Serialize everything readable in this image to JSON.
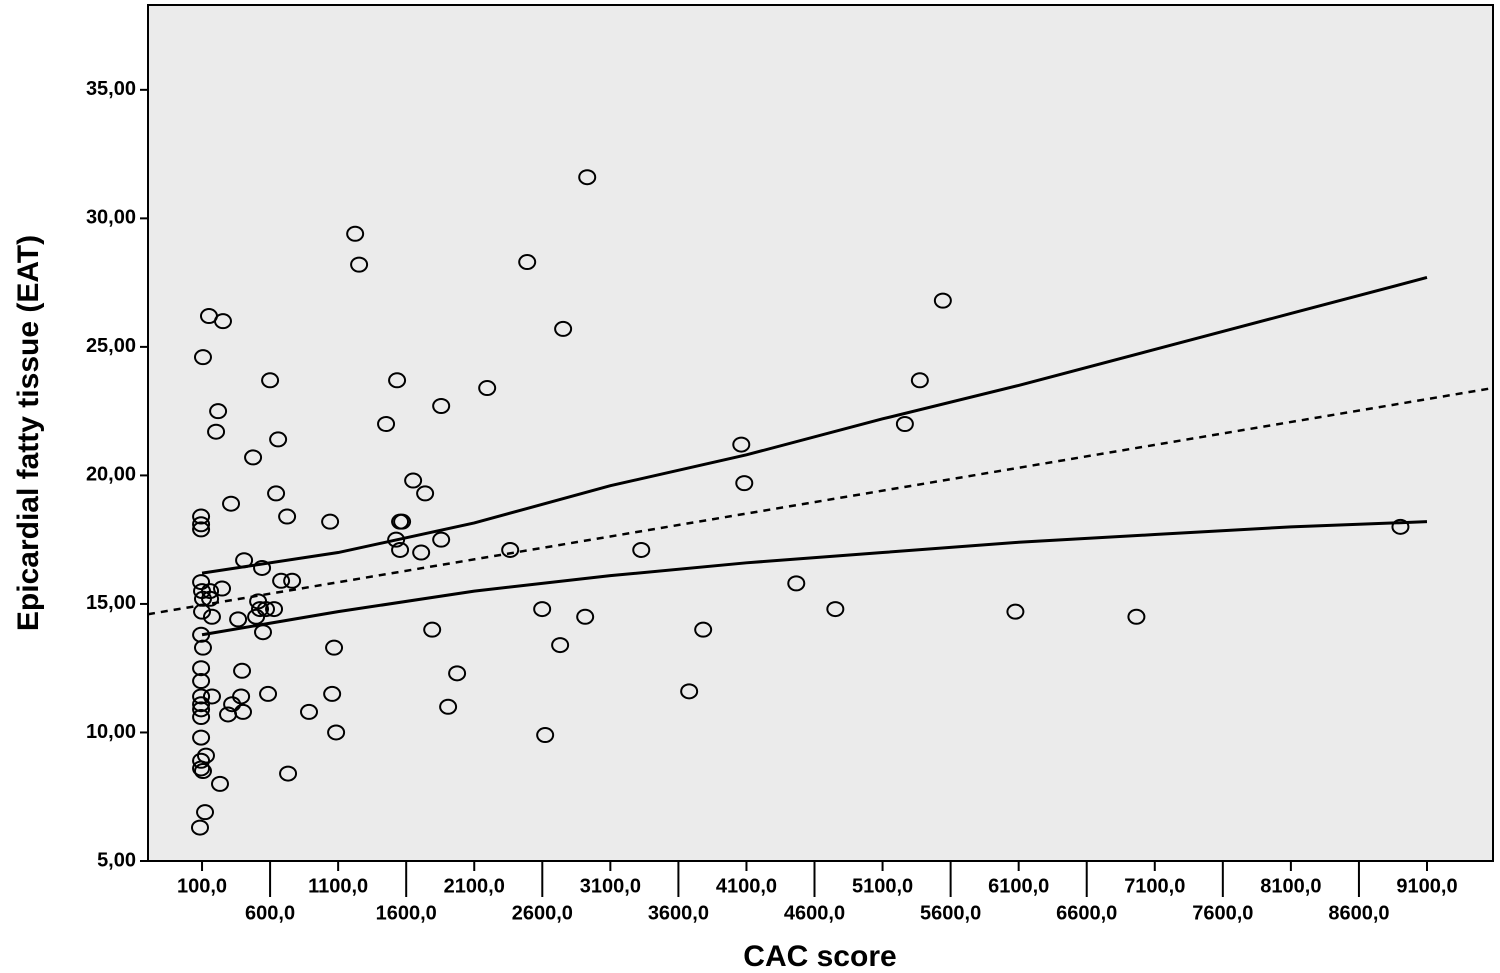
{
  "chart_data": {
    "type": "scatter",
    "x_label": "CAC score",
    "y_label": "Epicardial fatty tissue (EAT)",
    "xlim": [
      -297,
      9585
    ],
    "ylim": [
      5,
      38.3
    ],
    "xticks": [
      {
        "value": 100,
        "label": "100,0"
      },
      {
        "value": 600,
        "label": "600,0"
      },
      {
        "value": 1100,
        "label": "1100,0"
      },
      {
        "value": 1600,
        "label": "1600,0"
      },
      {
        "value": 2100,
        "label": "2100,0"
      },
      {
        "value": 2600,
        "label": "2600,0"
      },
      {
        "value": 3100,
        "label": "3100,0"
      },
      {
        "value": 3600,
        "label": "3600,0"
      },
      {
        "value": 4100,
        "label": "4100,0"
      },
      {
        "value": 4600,
        "label": "4600,0"
      },
      {
        "value": 5100,
        "label": "5100,0"
      },
      {
        "value": 5600,
        "label": "5600,0"
      },
      {
        "value": 6100,
        "label": "6100,0"
      },
      {
        "value": 6600,
        "label": "6600,0"
      },
      {
        "value": 7100,
        "label": "7100,0"
      },
      {
        "value": 7600,
        "label": "7600,0"
      },
      {
        "value": 8100,
        "label": "8100,0"
      },
      {
        "value": 8600,
        "label": "8600,0"
      },
      {
        "value": 9100,
        "label": "9100,0"
      }
    ],
    "yticks": [
      {
        "value": 5,
        "label": "5,00"
      },
      {
        "value": 10,
        "label": "10,00"
      },
      {
        "value": 15,
        "label": "15,00"
      },
      {
        "value": 20,
        "label": "20,00"
      },
      {
        "value": 25,
        "label": "25,00"
      },
      {
        "value": 30,
        "label": "30,00"
      },
      {
        "value": 35,
        "label": "35,00"
      }
    ],
    "marker_color": "#000000",
    "background": "#ebebeb",
    "x": [
      93,
      93,
      93,
      93,
      100,
      107,
      159,
      100,
      173,
      93,
      107,
      93,
      93,
      93,
      93,
      93,
      93,
      173,
      93,
      129,
      93,
      93,
      107,
      122,
      85,
      107,
      151,
      254,
      218,
      203,
      313,
      247,
      159,
      232,
      291,
      321,
      365,
      394,
      409,
      387,
      401,
      475,
      497,
      512,
      541,
      526,
      548,
      570,
      600,
      585,
      644,
      659,
      629,
      681,
      725,
      762,
      732,
      886,
      1041,
      1070,
      1056,
      1085,
      1225,
      1254,
      1452,
      1533,
      1555,
      1526,
      1555,
      1570,
      1651,
      1710,
      1739,
      1791,
      1857,
      1857,
      1908,
      1974,
      2195,
      2364,
      2489,
      2599,
      2621,
      2731,
      2753,
      2915,
      2930,
      3327,
      3679,
      3782,
      4062,
      4084,
      4466,
      4753,
      5264,
      5374,
      5543,
      6076,
      6965,
      8905
    ],
    "values": [
      18.4,
      18.1,
      17.9,
      15.85,
      15.5,
      15.2,
      15.5,
      14.7,
      14.5,
      13.8,
      13.3,
      12.5,
      12.0,
      11.4,
      11.1,
      10.9,
      10.6,
      11.4,
      9.8,
      9.1,
      8.9,
      8.6,
      8.5,
      6.9,
      6.3,
      24.6,
      26.2,
      26.0,
      22.5,
      21.7,
      18.9,
      15.6,
      15.2,
      8.0,
      10.7,
      11.1,
      14.4,
      12.4,
      16.7,
      11.4,
      10.8,
      20.7,
      14.5,
      15.1,
      16.4,
      14.8,
      13.9,
      14.8,
      23.7,
      11.5,
      19.3,
      21.4,
      14.8,
      15.9,
      18.4,
      15.9,
      8.4,
      10.8,
      18.2,
      13.3,
      11.5,
      10.0,
      29.4,
      28.2,
      22.0,
      23.7,
      18.2,
      17.5,
      17.1,
      18.2,
      19.8,
      17.0,
      19.3,
      14.0,
      22.7,
      17.5,
      11.0,
      12.3,
      23.4,
      17.1,
      28.3,
      14.8,
      9.9,
      13.4,
      25.7,
      14.5,
      31.6,
      17.1,
      11.6,
      14.0,
      21.2,
      19.7,
      15.8,
      14.8,
      22.0,
      23.7,
      26.8,
      14.7,
      14.5,
      18.0
    ],
    "fit_lines": [
      {
        "x": [
          -297,
          9585
        ],
        "values": [
          14.6,
          23.4
        ],
        "dashed": true
      },
      {
        "x": [
          100,
          1100,
          2100,
          3100,
          4100,
          5100,
          6100,
          7100,
          8100,
          9100
        ],
        "values": [
          16.2,
          17.0,
          18.15,
          19.6,
          20.8,
          22.2,
          23.5,
          24.9,
          26.3,
          27.7
        ],
        "dashed": false
      },
      {
        "x": [
          100,
          1100,
          2100,
          3100,
          4100,
          5100,
          6100,
          7100,
          8100,
          9100
        ],
        "values": [
          13.8,
          14.7,
          15.5,
          16.1,
          16.6,
          17.0,
          17.4,
          17.7,
          18.0,
          18.2
        ],
        "dashed": false
      }
    ]
  }
}
